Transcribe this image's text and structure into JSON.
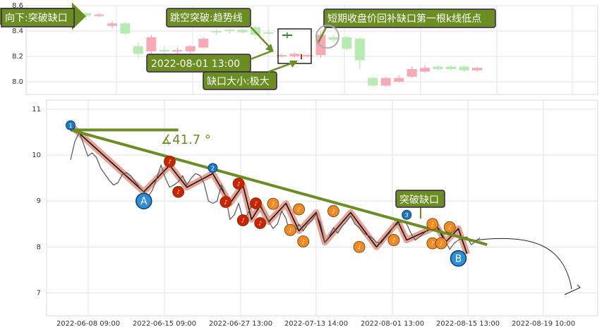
{
  "chart_data": [
    {
      "type": "candlestick",
      "ylim": [
        7.9,
        8.6
      ],
      "y_ticks": [
        "8.6",
        "8.4",
        "8.2",
        "8.0"
      ],
      "grid": true,
      "candles": [
        {
          "o": 8.52,
          "c": 8.54,
          "h": 8.55,
          "l": 8.49,
          "dir": "up"
        },
        {
          "o": 8.53,
          "c": 8.52,
          "h": 8.54,
          "l": 8.51,
          "dir": "down"
        },
        {
          "o": 8.46,
          "c": 8.44,
          "h": 8.48,
          "l": 8.42,
          "dir": "down"
        },
        {
          "o": 8.46,
          "c": 8.38,
          "h": 8.47,
          "l": 8.37,
          "dir": "up"
        },
        {
          "o": 8.28,
          "c": 8.22,
          "h": 8.31,
          "l": 8.19,
          "dir": "up"
        },
        {
          "o": 8.24,
          "c": 8.35,
          "h": 8.37,
          "l": 8.22,
          "dir": "down"
        },
        {
          "o": 8.24,
          "c": 8.25,
          "h": 8.28,
          "l": 8.21,
          "dir": "up"
        },
        {
          "o": 8.24,
          "c": 8.25,
          "h": 8.27,
          "l": 8.22,
          "dir": "down"
        },
        {
          "o": 8.28,
          "c": 8.24,
          "h": 8.29,
          "l": 8.22,
          "dir": "down"
        },
        {
          "o": 8.27,
          "c": 8.34,
          "h": 8.35,
          "l": 8.26,
          "dir": "down"
        },
        {
          "o": 8.4,
          "c": 8.39,
          "h": 8.42,
          "l": 8.37,
          "dir": "up"
        },
        {
          "o": 8.41,
          "c": 8.4,
          "h": 8.42,
          "l": 8.38,
          "dir": "up"
        },
        {
          "o": 8.41,
          "c": 8.39,
          "h": 8.42,
          "l": 8.38,
          "dir": "up"
        },
        {
          "o": 8.43,
          "c": 8.37,
          "h": 8.44,
          "l": 8.36,
          "dir": "up"
        },
        {
          "o": 8.38,
          "c": 8.39,
          "h": 8.41,
          "l": 8.37,
          "dir": "up"
        },
        {
          "o": 8.2,
          "c": 8.21,
          "h": 8.22,
          "l": 8.19,
          "dir": "down"
        },
        {
          "o": 8.22,
          "c": 8.2,
          "h": 8.23,
          "l": 8.19,
          "dir": "down"
        },
        {
          "o": 8.21,
          "c": 8.2,
          "h": 8.22,
          "l": 8.19,
          "dir": "down"
        },
        {
          "o": 8.21,
          "c": 8.37,
          "h": 8.4,
          "l": 8.19,
          "dir": "down"
        },
        {
          "o": 8.33,
          "c": 8.35,
          "h": 8.37,
          "l": 8.31,
          "dir": "up"
        },
        {
          "o": 8.26,
          "c": 8.35,
          "h": 8.36,
          "l": 8.25,
          "dir": "up"
        },
        {
          "o": 8.34,
          "c": 8.17,
          "h": 8.35,
          "l": 8.1,
          "dir": "up"
        },
        {
          "o": 8.03,
          "c": 7.97,
          "h": 8.04,
          "l": 7.96,
          "dir": "up"
        },
        {
          "o": 7.97,
          "c": 8.03,
          "h": 8.04,
          "l": 7.96,
          "dir": "down"
        },
        {
          "o": 8.0,
          "c": 8.03,
          "h": 8.05,
          "l": 7.99,
          "dir": "down"
        },
        {
          "o": 8.04,
          "c": 8.1,
          "h": 8.12,
          "l": 8.03,
          "dir": "down"
        },
        {
          "o": 8.08,
          "c": 8.11,
          "h": 8.13,
          "l": 8.07,
          "dir": "down"
        },
        {
          "o": 8.1,
          "c": 8.12,
          "h": 8.13,
          "l": 8.09,
          "dir": "up"
        },
        {
          "o": 8.1,
          "c": 8.12,
          "h": 8.13,
          "l": 8.09,
          "dir": "up"
        },
        {
          "o": 8.09,
          "c": 8.12,
          "h": 8.13,
          "l": 8.08,
          "dir": "up"
        },
        {
          "o": 8.09,
          "c": 8.11,
          "h": 8.12,
          "l": 8.08,
          "dir": "down"
        }
      ],
      "annotations": [
        "向下:突破缺口",
        "跳空突破:趋势线",
        "短期收盘价回补缺口第一根k线低点",
        "2022-08-01 13:00",
        "缺口大小:极大"
      ]
    },
    {
      "type": "line",
      "ylim": [
        6.5,
        11.2
      ],
      "y_ticks": [
        "11",
        "10",
        "9",
        "8",
        "7"
      ],
      "x_ticks": [
        "2022-06-08 09:00",
        "2022-06-15 09:00",
        "2022-06-27 13:00",
        "2022-07-13 14:00",
        "2022-08-01 13:00",
        "2022-08-15 13:00",
        "2022-08-19 10:00"
      ],
      "grid": true,
      "price": [
        9.9,
        10.3,
        10.5,
        10.25,
        9.98,
        10.05,
        9.95,
        9.72,
        9.58,
        9.45,
        9.35,
        9.4,
        9.58,
        9.62,
        9.55,
        9.42,
        9.3,
        9.2,
        9.1,
        9.24,
        9.5,
        9.78,
        9.5,
        9.3,
        9.35,
        9.42,
        9.55,
        9.35,
        9.5,
        9.6,
        9.56,
        9.38,
        9.0,
        8.95,
        9.0,
        9.35,
        9.1,
        8.6,
        8.7,
        8.95,
        8.63,
        8.7,
        8.9,
        8.85,
        8.94,
        8.72,
        8.55,
        8.4,
        8.5,
        8.78,
        8.62,
        8.25,
        8.32,
        8.5,
        8.35,
        8.5,
        8.58,
        8.72,
        8.52,
        8.1,
        8.22,
        8.42,
        8.3,
        8.45,
        8.55,
        8.68,
        8.5,
        8.42,
        8.3,
        8.25,
        8.2,
        8.1,
        8.08,
        8.2,
        8.3,
        8.45,
        8.5,
        8.58,
        8.5,
        8.3,
        8.15,
        8.22,
        8.3,
        8.38,
        8.4,
        8.45,
        8.35,
        8.12,
        7.95,
        8.08,
        8.15,
        8.2,
        8.22,
        8.05,
        8.12,
        8.2
      ],
      "zigzag": [
        {
          "x": 0,
          "y": 10.65
        },
        {
          "x": 17,
          "y": 9.2
        },
        {
          "x": 23,
          "y": 9.78
        },
        {
          "x": 27,
          "y": 9.3
        },
        {
          "x": 33,
          "y": 9.6
        },
        {
          "x": 37,
          "y": 8.95
        },
        {
          "x": 40,
          "y": 9.35
        },
        {
          "x": 42,
          "y": 8.6
        },
        {
          "x": 44,
          "y": 8.9
        },
        {
          "x": 46,
          "y": 8.55
        },
        {
          "x": 50,
          "y": 8.95
        },
        {
          "x": 53,
          "y": 8.35
        },
        {
          "x": 57,
          "y": 8.75
        },
        {
          "x": 59,
          "y": 8.1
        },
        {
          "x": 65,
          "y": 8.75
        },
        {
          "x": 71,
          "y": 8.0
        },
        {
          "x": 76,
          "y": 8.55
        },
        {
          "x": 78,
          "y": 8.15
        },
        {
          "x": 85,
          "y": 8.45
        },
        {
          "x": 87,
          "y": 8.1
        },
        {
          "x": 90,
          "y": 8.4
        },
        {
          "x": 92,
          "y": 7.85
        }
      ],
      "pivots": [
        {
          "x": 0,
          "y": 10.65,
          "label": "1",
          "color": "#1f77c4"
        },
        {
          "x": 33,
          "y": 9.72,
          "label": "2",
          "color": "#1f77c4"
        },
        {
          "x": 78,
          "y": 8.7,
          "label": "3",
          "color": "#1f77c4"
        }
      ],
      "notes": [
        {
          "x": 23,
          "y": 9.86,
          "color": "#cc2200"
        },
        {
          "x": 25,
          "y": 9.2,
          "color": "#cc2200"
        },
        {
          "x": 39,
          "y": 9.38,
          "color": "#cc2200"
        },
        {
          "x": 36,
          "y": 8.98,
          "color": "#cc2200"
        },
        {
          "x": 43,
          "y": 8.95,
          "color": "#cc2200"
        },
        {
          "x": 40,
          "y": 8.58,
          "color": "#cc2200"
        },
        {
          "x": 44,
          "y": 8.52,
          "color": "#cc2200"
        },
        {
          "x": 47,
          "y": 8.94,
          "color": "#f08a24"
        },
        {
          "x": 51,
          "y": 8.37,
          "color": "#f08a24"
        },
        {
          "x": 53,
          "y": 8.82,
          "color": "#f08a24"
        },
        {
          "x": 54,
          "y": 8.12,
          "color": "#f08a24"
        },
        {
          "x": 61,
          "y": 8.78,
          "color": "#f08a24"
        },
        {
          "x": 67,
          "y": 8.0,
          "color": "#f08a24"
        },
        {
          "x": 75,
          "y": 8.15,
          "color": "#f08a24"
        },
        {
          "x": 84,
          "y": 8.5,
          "color": "#f08a24"
        },
        {
          "x": 84,
          "y": 8.08,
          "color": "#f08a24"
        },
        {
          "x": 88,
          "y": 8.43,
          "color": "#f08a24"
        },
        {
          "x": 86,
          "y": 8.08,
          "color": "#f08a24"
        }
      ],
      "trendline": {
        "x1": 0,
        "y1": 10.55,
        "x2": 97,
        "y2": 8.05
      },
      "angle_label": "∡41.7 °",
      "point_labels": [
        {
          "x": 17,
          "y": 9.0,
          "label": "A"
        },
        {
          "x": 90,
          "y": 7.75,
          "label": "B"
        }
      ],
      "gap_label": "突破缺口"
    }
  ]
}
